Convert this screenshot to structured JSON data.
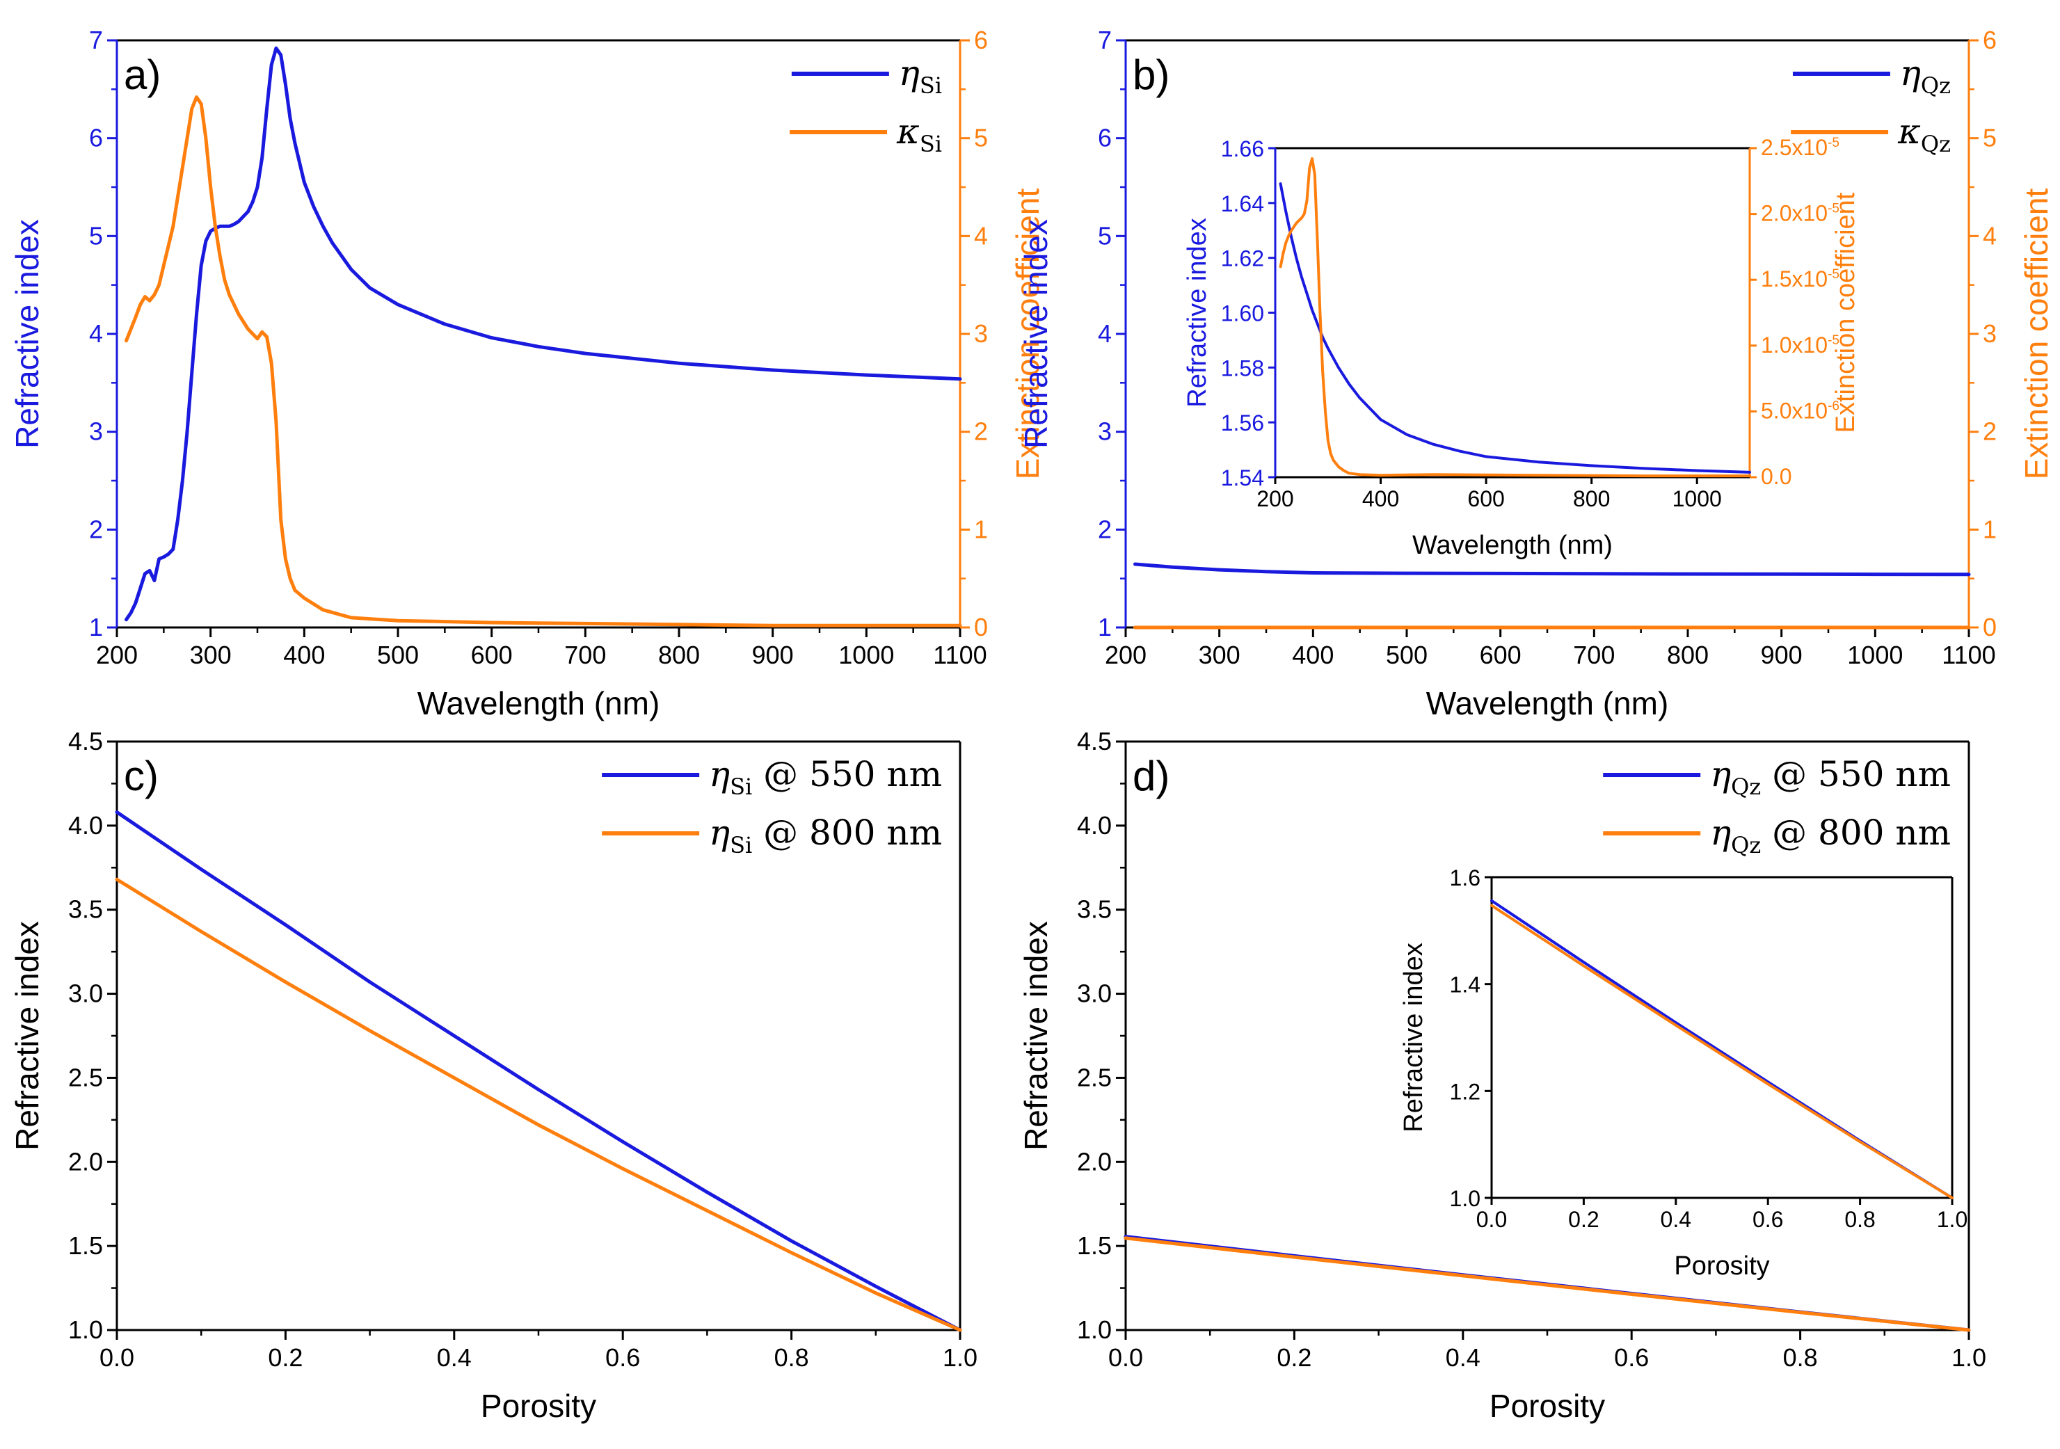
{
  "colors": {
    "blue": "#1a1adf",
    "orange": "#ff7f0e",
    "black": "#000000"
  },
  "chart_data": [
    {
      "id": "a",
      "type": "line",
      "panel_label": "a)",
      "xlabel": "Wavelength (nm)",
      "ylabel": "Refractive index",
      "ylabel_right": "Extinction coefficient",
      "xlim": [
        200,
        1100
      ],
      "ylim": [
        1,
        7
      ],
      "ylim_right": [
        0,
        6
      ],
      "xticks": [
        "200",
        "300",
        "400",
        "500",
        "600",
        "700",
        "800",
        "900",
        "1000",
        "1100"
      ],
      "yticks": [
        "1",
        "2",
        "3",
        "4",
        "5",
        "6",
        "7"
      ],
      "yticks_right": [
        "0",
        "1",
        "2",
        "3",
        "4",
        "5",
        "6"
      ],
      "legend": [
        {
          "symbol": "η",
          "sub": "Si",
          "suffix": "",
          "color": "blue"
        },
        {
          "symbol": "κ",
          "sub": "Si",
          "suffix": "",
          "color": "orange"
        }
      ],
      "series": [
        {
          "name": "η_Si",
          "axis": "left",
          "color": "blue",
          "x": [
            210,
            215,
            220,
            225,
            230,
            235,
            240,
            245,
            250,
            255,
            260,
            265,
            270,
            275,
            280,
            285,
            290,
            295,
            300,
            305,
            310,
            315,
            320,
            325,
            330,
            335,
            340,
            345,
            350,
            355,
            360,
            365,
            370,
            375,
            380,
            385,
            390,
            400,
            410,
            420,
            430,
            450,
            470,
            500,
            550,
            600,
            650,
            700,
            800,
            900,
            1000,
            1100
          ],
          "y": [
            1.08,
            1.15,
            1.25,
            1.4,
            1.55,
            1.58,
            1.48,
            1.7,
            1.72,
            1.75,
            1.8,
            2.1,
            2.5,
            3.0,
            3.6,
            4.2,
            4.7,
            4.95,
            5.05,
            5.08,
            5.1,
            5.1,
            5.1,
            5.12,
            5.15,
            5.2,
            5.25,
            5.35,
            5.5,
            5.8,
            6.3,
            6.75,
            6.92,
            6.85,
            6.55,
            6.2,
            5.95,
            5.55,
            5.3,
            5.1,
            4.93,
            4.66,
            4.47,
            4.3,
            4.1,
            3.96,
            3.87,
            3.8,
            3.7,
            3.63,
            3.58,
            3.54
          ]
        },
        {
          "name": "κ_Si",
          "axis": "right",
          "color": "orange",
          "x": [
            210,
            215,
            220,
            225,
            230,
            235,
            240,
            245,
            250,
            255,
            260,
            265,
            270,
            275,
            280,
            285,
            290,
            295,
            300,
            305,
            310,
            315,
            320,
            330,
            340,
            350,
            355,
            360,
            365,
            370,
            375,
            380,
            385,
            390,
            400,
            420,
            450,
            500,
            600,
            700,
            800,
            900,
            1000,
            1100
          ],
          "y": [
            2.93,
            3.05,
            3.17,
            3.3,
            3.38,
            3.34,
            3.4,
            3.5,
            3.7,
            3.9,
            4.1,
            4.4,
            4.7,
            5.0,
            5.3,
            5.42,
            5.35,
            5.0,
            4.5,
            4.1,
            3.8,
            3.55,
            3.4,
            3.2,
            3.05,
            2.95,
            3.02,
            2.97,
            2.7,
            2.1,
            1.1,
            0.7,
            0.5,
            0.38,
            0.3,
            0.18,
            0.1,
            0.07,
            0.05,
            0.04,
            0.03,
            0.02,
            0.02,
            0.02
          ]
        }
      ]
    },
    {
      "id": "b",
      "type": "line",
      "panel_label": "b)",
      "xlabel": "Wavelength (nm)",
      "ylabel": "Refractive index",
      "ylabel_right": "Extinction coefficient",
      "xlim": [
        200,
        1100
      ],
      "ylim": [
        1,
        7
      ],
      "ylim_right": [
        0,
        6
      ],
      "xticks": [
        "200",
        "300",
        "400",
        "500",
        "600",
        "700",
        "800",
        "900",
        "1000",
        "1100"
      ],
      "yticks": [
        "1",
        "2",
        "3",
        "4",
        "5",
        "6",
        "7"
      ],
      "yticks_right": [
        "0",
        "1",
        "2",
        "3",
        "4",
        "5",
        "6"
      ],
      "legend": [
        {
          "symbol": "η",
          "sub": "Qz",
          "suffix": "",
          "color": "blue"
        },
        {
          "symbol": "κ",
          "sub": "Qz",
          "suffix": "",
          "color": "orange"
        }
      ],
      "series": [
        {
          "name": "η_Qz",
          "axis": "left",
          "color": "blue",
          "x": [
            210,
            250,
            300,
            350,
            400,
            500,
            600,
            700,
            800,
            900,
            1000,
            1100
          ],
          "y": [
            1.647,
            1.616,
            1.589,
            1.57,
            1.558,
            1.554,
            1.552,
            1.549,
            1.547,
            1.545,
            1.543,
            1.542
          ]
        },
        {
          "name": "κ_Qz",
          "axis": "right",
          "color": "orange",
          "x": [
            210,
            400,
            700,
            1100
          ],
          "y": [
            0,
            0,
            0,
            0
          ]
        }
      ],
      "inset": {
        "xlabel": "Wavelength (nm)",
        "ylabel": "Refractive index",
        "ylabel_right": "Extinction coefficient",
        "xlim": [
          200,
          1100
        ],
        "ylim": [
          1.54,
          1.66
        ],
        "ylim_right": [
          0,
          2.5e-05
        ],
        "xticks": [
          "200",
          "400",
          "600",
          "800",
          "1000"
        ],
        "yticks": [
          "1.54",
          "1.56",
          "1.58",
          "1.60",
          "1.62",
          "1.64",
          "1.66"
        ],
        "yticks_right": [
          {
            "mant": "0.0",
            "exp": ""
          },
          {
            "mant": "5.0x10",
            "exp": "-6"
          },
          {
            "mant": "1.0x10",
            "exp": "-5"
          },
          {
            "mant": "1.5x10",
            "exp": "-5"
          },
          {
            "mant": "2.0x10",
            "exp": "-5"
          },
          {
            "mant": "2.5x10",
            "exp": "-5"
          }
        ],
        "series": [
          {
            "name": "η_Qz",
            "axis": "left",
            "color": "blue",
            "x": [
              210,
              220,
              230,
              240,
              250,
              260,
              270,
              280,
              290,
              300,
              320,
              340,
              360,
              380,
              400,
              450,
              500,
              550,
              600,
              700,
              800,
              900,
              1000,
              1100
            ],
            "y": [
              1.647,
              1.637,
              1.628,
              1.62,
              1.613,
              1.607,
              1.601,
              1.596,
              1.591,
              1.587,
              1.58,
              1.574,
              1.569,
              1.565,
              1.561,
              1.5555,
              1.552,
              1.5495,
              1.5475,
              1.5455,
              1.5442,
              1.5432,
              1.5424,
              1.5418
            ]
          },
          {
            "name": "κ_Qz",
            "axis": "right",
            "color": "orange",
            "x": [
              210,
              215,
              220,
              225,
              230,
              240,
              250,
              255,
              260,
              265,
              270,
              275,
              280,
              285,
              290,
              295,
              300,
              305,
              310,
              320,
              330,
              340,
              360,
              400,
              500,
              700,
              900,
              1100
            ],
            "y": [
              1.6e-05,
              1.7e-05,
              1.78e-05,
              1.83e-05,
              1.87e-05,
              1.93e-05,
              1.97e-05,
              2e-05,
              2.1e-05,
              2.35e-05,
              2.42e-05,
              2.3e-05,
              1.8e-05,
              1.25e-05,
              8e-06,
              5e-06,
              2.8e-06,
              1.8e-06,
              1.3e-06,
              8e-07,
              5e-07,
              3e-07,
              2e-07,
              1.5e-07,
              2e-07,
              1.5e-07,
              1e-07,
              1e-07
            ]
          }
        ]
      }
    },
    {
      "id": "c",
      "type": "line",
      "panel_label": "c)",
      "xlabel": "Porosity",
      "ylabel": "Refractive index",
      "xlim": [
        0,
        1
      ],
      "ylim": [
        1,
        4.5
      ],
      "xticks": [
        "0.0",
        "0.2",
        "0.4",
        "0.6",
        "0.8",
        "1.0"
      ],
      "yticks": [
        "1.0",
        "1.5",
        "2.0",
        "2.5",
        "3.0",
        "3.5",
        "4.0",
        "4.5"
      ],
      "legend": [
        {
          "symbol": "η",
          "sub": "Si",
          "suffix": " @ 550 nm",
          "color": "blue"
        },
        {
          "symbol": "η",
          "sub": "Si",
          "suffix": " @ 800 nm",
          "color": "orange"
        }
      ],
      "series": [
        {
          "name": "η_Si @ 550 nm",
          "axis": "left",
          "color": "blue",
          "x": [
            0,
            0.1,
            0.2,
            0.3,
            0.4,
            0.5,
            0.6,
            0.7,
            0.8,
            0.9,
            1.0
          ],
          "y": [
            4.08,
            3.74,
            3.41,
            3.07,
            2.75,
            2.43,
            2.12,
            1.82,
            1.53,
            1.26,
            1.0
          ]
        },
        {
          "name": "η_Si @ 800 nm",
          "axis": "left",
          "color": "orange",
          "x": [
            0,
            0.1,
            0.2,
            0.3,
            0.4,
            0.5,
            0.6,
            0.7,
            0.8,
            0.9,
            1.0
          ],
          "y": [
            3.68,
            3.37,
            3.07,
            2.78,
            2.5,
            2.22,
            1.96,
            1.71,
            1.46,
            1.22,
            1.0
          ]
        }
      ]
    },
    {
      "id": "d",
      "type": "line",
      "panel_label": "d)",
      "xlabel": "Porosity",
      "ylabel": "Refractive index",
      "xlim": [
        0,
        1
      ],
      "ylim": [
        1,
        4.5
      ],
      "xticks": [
        "0.0",
        "0.2",
        "0.4",
        "0.6",
        "0.8",
        "1.0"
      ],
      "yticks": [
        "1.0",
        "1.5",
        "2.0",
        "2.5",
        "3.0",
        "3.5",
        "4.0",
        "4.5"
      ],
      "legend": [
        {
          "symbol": "η",
          "sub": "Qz",
          "suffix": " @ 550 nm",
          "color": "blue"
        },
        {
          "symbol": "η",
          "sub": "Qz",
          "suffix": " @ 800 nm",
          "color": "orange"
        }
      ],
      "series": [
        {
          "name": "η_Qz @ 550 nm",
          "axis": "left",
          "color": "blue",
          "x": [
            0,
            0.2,
            0.4,
            0.6,
            0.8,
            1.0
          ],
          "y": [
            1.556,
            1.441,
            1.328,
            1.217,
            1.107,
            1.0
          ]
        },
        {
          "name": "η_Qz @ 800 nm",
          "axis": "left",
          "color": "orange",
          "x": [
            0,
            0.2,
            0.4,
            0.6,
            0.8,
            1.0
          ],
          "y": [
            1.547,
            1.434,
            1.323,
            1.213,
            1.105,
            1.0
          ]
        }
      ],
      "inset": {
        "xlabel": "Porosity",
        "ylabel": "Refractive index",
        "xlim": [
          0,
          1
        ],
        "ylim": [
          1.0,
          1.6
        ],
        "xticks": [
          "0.0",
          "0.2",
          "0.4",
          "0.6",
          "0.8",
          "1.0"
        ],
        "yticks": [
          "1.0",
          "1.2",
          "1.4",
          "1.6"
        ],
        "series": [
          {
            "name": "η_Qz @ 550 nm",
            "axis": "left",
            "color": "blue",
            "x": [
              0,
              0.2,
              0.4,
              0.6,
              0.8,
              1.0
            ],
            "y": [
              1.556,
              1.441,
              1.328,
              1.217,
              1.107,
              1.0
            ]
          },
          {
            "name": "η_Qz @ 800 nm",
            "axis": "left",
            "color": "orange",
            "x": [
              0,
              0.2,
              0.4,
              0.6,
              0.8,
              1.0
            ],
            "y": [
              1.547,
              1.434,
              1.323,
              1.213,
              1.105,
              1.0
            ]
          }
        ]
      }
    }
  ]
}
